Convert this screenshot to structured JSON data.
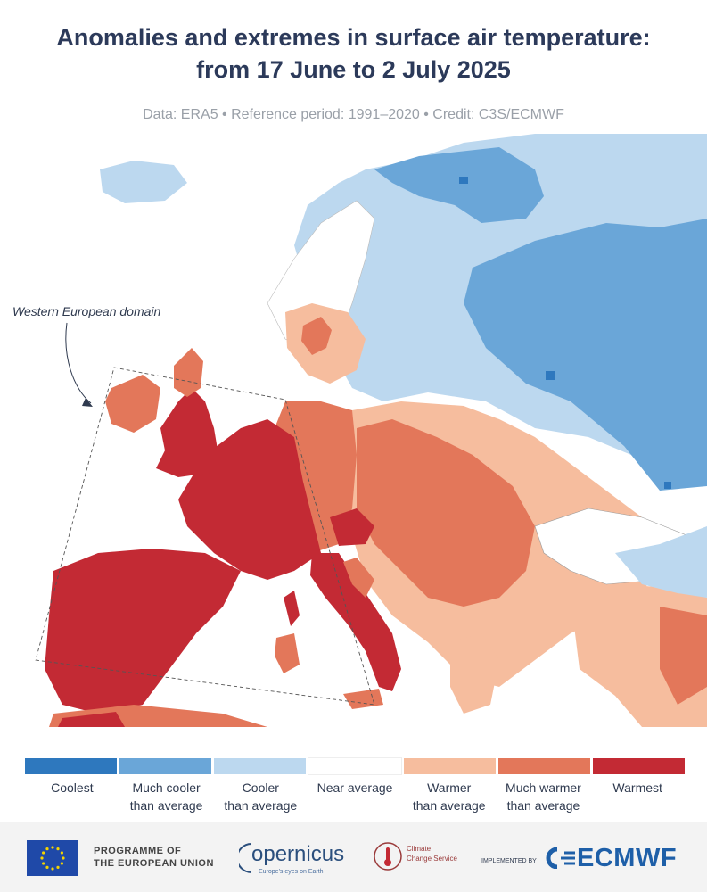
{
  "title_line1": "Anomalies and extremes in surface air temperature:",
  "title_line2": "from 17 June to 2 July 2025",
  "subtitle": "Data: ERA5 • Reference period: 1991–2020 • Credit: C3S/ECMWF",
  "map": {
    "annotation": "Western European domain",
    "colors": {
      "coolest": "#2e78be",
      "much_cooler": "#6aa6d8",
      "cooler": "#bcd8ef",
      "near_average": "#ffffff",
      "warmer": "#f6bd9e",
      "much_warmer": "#e3775a",
      "warmest": "#c32a34"
    }
  },
  "legend": [
    {
      "line1": "Coolest",
      "line2": "",
      "color": "#2e78be"
    },
    {
      "line1": "Much cooler",
      "line2": "than average",
      "color": "#6aa6d8"
    },
    {
      "line1": "Cooler",
      "line2": "than average",
      "color": "#bcd8ef"
    },
    {
      "line1": "Near average",
      "line2": "",
      "color": "#ffffff"
    },
    {
      "line1": "Warmer",
      "line2": "than average",
      "color": "#f6bd9e"
    },
    {
      "line1": "Much warmer",
      "line2": "than average",
      "color": "#e3775a"
    },
    {
      "line1": "Warmest",
      "line2": "",
      "color": "#c32a34"
    }
  ],
  "footer": {
    "eu_line1": "PROGRAMME OF",
    "eu_line2": "THE EUROPEAN UNION",
    "copernicus": "opernicus",
    "copernicus_tagline": "Europe's eyes on Earth",
    "ccs_line1": "Climate",
    "ccs_line2": "Change Service",
    "implemented_by": "IMPLEMENTED BY",
    "ecmwf": "ECMWF"
  }
}
